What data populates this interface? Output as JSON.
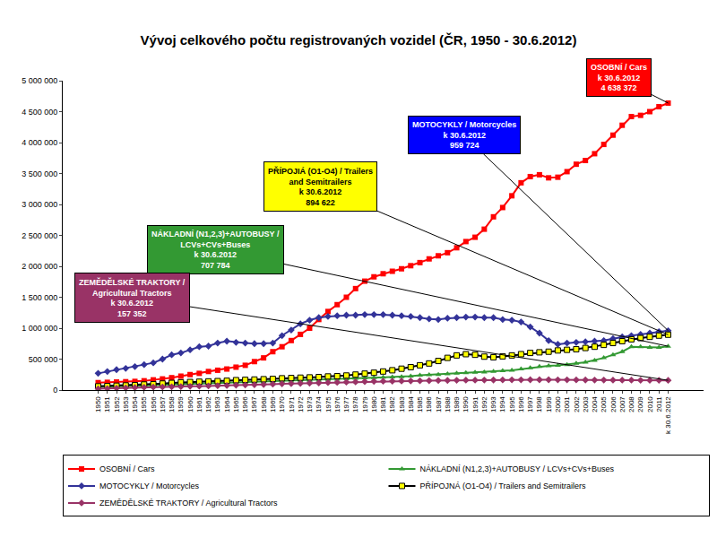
{
  "chart_data": {
    "type": "line",
    "title": "Vývoj celkového počtu registrovaných vozidel (ČR, 1950 - 30.6.2012)",
    "categories": [
      "1950",
      "1951",
      "1952",
      "1953",
      "1954",
      "1955",
      "1956",
      "1957",
      "1958",
      "1959",
      "1960",
      "1961",
      "1962",
      "1963",
      "1964",
      "1965",
      "1966",
      "1967",
      "1968",
      "1969",
      "1970",
      "1971",
      "1972",
      "1973",
      "1974",
      "1975",
      "1976",
      "1977",
      "1978",
      "1979",
      "1980",
      "1981",
      "1982",
      "1983",
      "1984",
      "1985",
      "1986",
      "1987",
      "1988",
      "1989",
      "1990",
      "1991",
      "1992",
      "1993",
      "1994",
      "1995",
      "1996",
      "1997",
      "1998",
      "1999",
      "2000",
      "2001",
      "2002",
      "2003",
      "2004",
      "2005",
      "2006",
      "2007",
      "2008",
      "2009",
      "2010",
      "2011",
      "k 30.6.2012"
    ],
    "ylim": [
      0,
      5000000
    ],
    "yticks": [
      0,
      {
        "value": 500000,
        "label": "500 000"
      },
      {
        "value": 1000000,
        "label": "1 000 000"
      },
      {
        "value": 1500000,
        "label": "1 500 000"
      },
      {
        "value": 2000000,
        "label": "2 000 000"
      },
      {
        "value": 2500000,
        "label": "2 500 000"
      },
      {
        "value": 3000000,
        "label": "3 000 000"
      },
      {
        "value": 3500000,
        "label": "3 500 000"
      },
      {
        "value": 4000000,
        "label": "4 000 000"
      },
      {
        "value": 4500000,
        "label": "4 500 000"
      },
      {
        "value": 5000000,
        "label": "5 000 000"
      }
    ],
    "grid": false,
    "legend": "bottom",
    "series": [
      {
        "name": "OSOBNÍ / Cars",
        "color": "#ff0000",
        "marker": "square",
        "values": [
          120000,
          125000,
          130000,
          135000,
          140000,
          150000,
          165000,
          180000,
          200000,
          225000,
          250000,
          270000,
          300000,
          320000,
          340000,
          370000,
          400000,
          460000,
          520000,
          620000,
          700000,
          800000,
          900000,
          1000000,
          1140000,
          1270000,
          1380000,
          1500000,
          1640000,
          1760000,
          1830000,
          1880000,
          1920000,
          1960000,
          2010000,
          2060000,
          2120000,
          2170000,
          2220000,
          2300000,
          2400000,
          2470000,
          2600000,
          2800000,
          2950000,
          3140000,
          3350000,
          3450000,
          3480000,
          3430000,
          3440000,
          3530000,
          3650000,
          3710000,
          3820000,
          3970000,
          4120000,
          4280000,
          4420000,
          4440000,
          4500000,
          4580000,
          4638372
        ],
        "annotation": {
          "lines": [
            "OSOBNÍ / Cars",
            "k 30.6.2012"
          ],
          "value_label": "4 638 372",
          "color": "#ff0000"
        }
      },
      {
        "name": "NÁKLADNÍ (N1,2,3)+AUTOBUSY / LCVs+CVs+Buses",
        "color": "#339933",
        "marker": "triangle",
        "values": [
          50000,
          55000,
          60000,
          65000,
          70000,
          75000,
          80000,
          85000,
          90000,
          95000,
          100000,
          105000,
          110000,
          113000,
          116000,
          120000,
          123000,
          126000,
          130000,
          135000,
          140000,
          145000,
          150000,
          155000,
          160000,
          170000,
          175000,
          180000,
          190000,
          195000,
          200000,
          205000,
          210000,
          215000,
          225000,
          240000,
          245000,
          250000,
          260000,
          270000,
          280000,
          285000,
          290000,
          300000,
          310000,
          320000,
          340000,
          360000,
          380000,
          390000,
          400000,
          410000,
          430000,
          450000,
          480000,
          520000,
          570000,
          620000,
          700000,
          700000,
          690000,
          690000,
          707784
        ],
        "annotation": {
          "lines": [
            "NÁKLADNÍ (N1,2,3)+AUTOBUSY /",
            "LCVs+CVs+Buses",
            "k 30.6.2012"
          ],
          "value_label": "707 784",
          "color": "#339933"
        }
      },
      {
        "name": "MOTOCYKLY / Motorcycles",
        "color": "#333399",
        "marker": "diamond",
        "values": [
          270000,
          300000,
          330000,
          350000,
          380000,
          410000,
          440000,
          500000,
          570000,
          600000,
          650000,
          700000,
          710000,
          760000,
          790000,
          770000,
          760000,
          750000,
          750000,
          760000,
          880000,
          970000,
          1070000,
          1130000,
          1170000,
          1190000,
          1200000,
          1210000,
          1210000,
          1220000,
          1220000,
          1220000,
          1210000,
          1200000,
          1190000,
          1170000,
          1150000,
          1140000,
          1160000,
          1170000,
          1180000,
          1180000,
          1170000,
          1170000,
          1140000,
          1130000,
          1100000,
          1020000,
          920000,
          800000,
          740000,
          760000,
          770000,
          780000,
          790000,
          800000,
          830000,
          860000,
          880000,
          900000,
          920000,
          945000,
          959724
        ],
        "annotation": {
          "lines": [
            "MOTOCYKLY / Motorcycles",
            "k 30.6.2012"
          ],
          "value_label": "959 724",
          "color": "#0000ff"
        }
      },
      {
        "name": "PŘÍPOJNÁ (O1-O4) / Trailers and Semitrailers",
        "color": "#ffff00",
        "marker": "square",
        "values": [
          60000,
          65000,
          70000,
          75000,
          80000,
          90000,
          95000,
          105000,
          115000,
          125000,
          130000,
          135000,
          140000,
          145000,
          150000,
          160000,
          165000,
          170000,
          175000,
          180000,
          190000,
          195000,
          200000,
          205000,
          210000,
          220000,
          225000,
          235000,
          250000,
          265000,
          280000,
          300000,
          320000,
          345000,
          370000,
          400000,
          430000,
          470000,
          520000,
          560000,
          580000,
          570000,
          540000,
          530000,
          545000,
          560000,
          580000,
          600000,
          610000,
          620000,
          640000,
          650000,
          660000,
          680000,
          700000,
          730000,
          760000,
          790000,
          820000,
          840000,
          860000,
          880000,
          894622
        ],
        "annotation": {
          "lines": [
            "PŘÍPOJIÁ (O1-O4) / Trailers",
            "and Semitrailers",
            "k 30.6.2012"
          ],
          "value_label": "894 622",
          "color": "#ffff00"
        }
      },
      {
        "name": "ZEMĚDĚLSKÉ TRAKTORY / Agricultural Tractors",
        "color": "#993366",
        "marker": "diamond",
        "values": [
          20000,
          25000,
          30000,
          35000,
          40000,
          45000,
          48000,
          50000,
          53000,
          56000,
          60000,
          63000,
          66000,
          70000,
          74000,
          78000,
          82000,
          86000,
          90000,
          95000,
          100000,
          104000,
          108000,
          112000,
          116000,
          120000,
          124000,
          128000,
          132000,
          136000,
          140000,
          142000,
          144000,
          146000,
          148000,
          150000,
          152000,
          154000,
          156000,
          158000,
          160000,
          161000,
          162000,
          163000,
          164000,
          165000,
          166000,
          167000,
          167000,
          167000,
          166000,
          165000,
          164000,
          163000,
          162000,
          162000,
          161000,
          160000,
          160000,
          159000,
          158000,
          158000,
          157352
        ],
        "annotation": {
          "lines": [
            "ZEMĚDĚLSKÉ TRAKTORY /",
            "Agricultural Tractors",
            "k 30.6.2012"
          ],
          "value_label": "157 352",
          "color": "#993366"
        }
      }
    ]
  }
}
